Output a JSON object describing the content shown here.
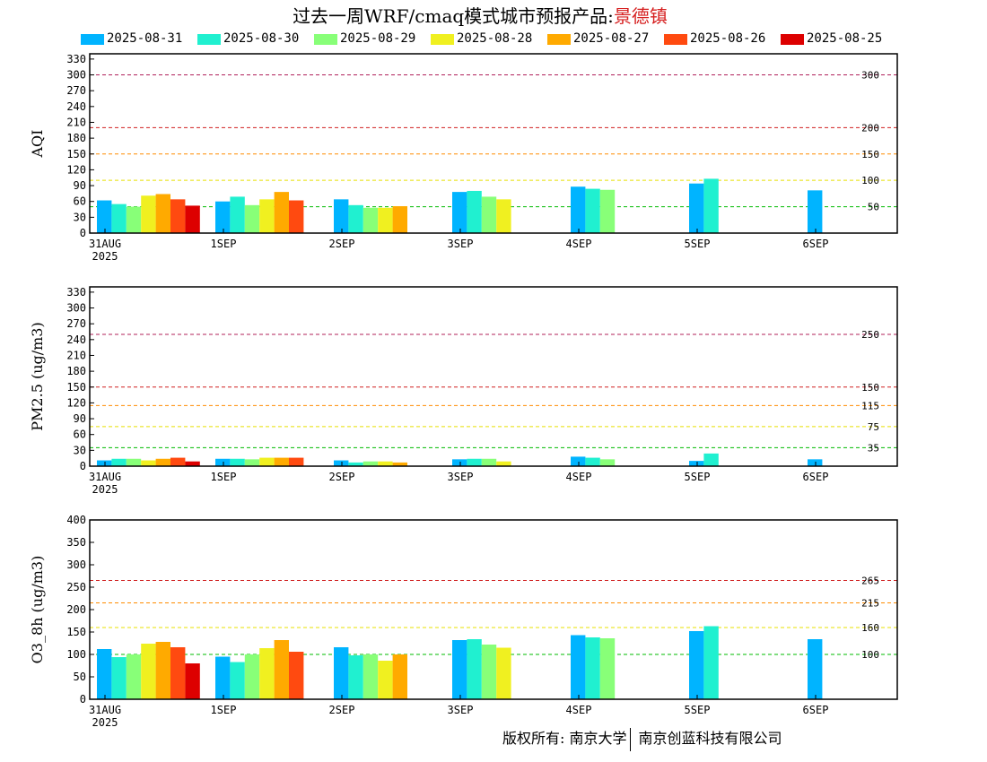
{
  "title": {
    "main": "过去一周WRF/cmaq模式城市预报产品:",
    "city": "景德镇",
    "city_color": "#d62020"
  },
  "legend": [
    {
      "label": "2025-08-31",
      "color": "#00b4ff"
    },
    {
      "label": "2025-08-30",
      "color": "#20f0d0"
    },
    {
      "label": "2025-08-29",
      "color": "#88ff78"
    },
    {
      "label": "2025-08-28",
      "color": "#f0f020"
    },
    {
      "label": "2025-08-27",
      "color": "#ffaa00"
    },
    {
      "label": "2025-08-26",
      "color": "#ff4a10"
    },
    {
      "label": "2025-08-25",
      "color": "#dd0000"
    }
  ],
  "copyright": {
    "left": "版权所有: 南京大学",
    "right": "南京创蓝科技有限公司"
  },
  "chart_data": [
    {
      "type": "bar",
      "ylabel": "AQI",
      "ylim": [
        0,
        340
      ],
      "yticks": [
        0,
        30,
        60,
        90,
        120,
        150,
        180,
        210,
        240,
        270,
        300,
        330
      ],
      "x_labels": [
        "31AUG",
        "1SEP",
        "2SEP",
        "3SEP",
        "4SEP",
        "5SEP",
        "6SEP"
      ],
      "x_sublabel": "2025",
      "thresholds": [
        {
          "value": 300,
          "label": "300",
          "color": "#b0205a"
        },
        {
          "value": 200,
          "label": "200",
          "color": "#d02020"
        },
        {
          "value": 150,
          "label": "150",
          "color": "#ff8c00"
        },
        {
          "value": 100,
          "label": "100",
          "color": "#e8e000"
        },
        {
          "value": 50,
          "label": "50",
          "color": "#00bb00"
        }
      ],
      "series": [
        {
          "name": "2025-08-31",
          "values": [
            62,
            60,
            64,
            78,
            88,
            94,
            81
          ]
        },
        {
          "name": "2025-08-30",
          "values": [
            55,
            69,
            53,
            80,
            84,
            103,
            null
          ]
        },
        {
          "name": "2025-08-29",
          "values": [
            50,
            53,
            48,
            69,
            82,
            null,
            null
          ]
        },
        {
          "name": "2025-08-28",
          "values": [
            71,
            64,
            48,
            64,
            null,
            null,
            null
          ]
        },
        {
          "name": "2025-08-27",
          "values": [
            74,
            78,
            51,
            null,
            null,
            null,
            null
          ]
        },
        {
          "name": "2025-08-26",
          "values": [
            64,
            62,
            null,
            null,
            null,
            null,
            null
          ]
        },
        {
          "name": "2025-08-25",
          "values": [
            52,
            null,
            null,
            null,
            null,
            null,
            null
          ]
        }
      ]
    },
    {
      "type": "bar",
      "ylabel": "PM2.5 (ug/m3)",
      "ylim": [
        0,
        340
      ],
      "yticks": [
        0,
        30,
        60,
        90,
        120,
        150,
        180,
        210,
        240,
        270,
        300,
        330
      ],
      "x_labels": [
        "31AUG",
        "1SEP",
        "2SEP",
        "3SEP",
        "4SEP",
        "5SEP",
        "6SEP"
      ],
      "x_sublabel": "2025",
      "thresholds": [
        {
          "value": 250,
          "label": "250",
          "color": "#b0205a"
        },
        {
          "value": 150,
          "label": "150",
          "color": "#d02020"
        },
        {
          "value": 115,
          "label": "115",
          "color": "#ff8c00"
        },
        {
          "value": 75,
          "label": "75",
          "color": "#e8e000"
        },
        {
          "value": 35,
          "label": "35",
          "color": "#00bb00"
        }
      ],
      "series": [
        {
          "name": "2025-08-31",
          "values": [
            11,
            14,
            11,
            13,
            18,
            10,
            13
          ]
        },
        {
          "name": "2025-08-30",
          "values": [
            14,
            14,
            7,
            14,
            16,
            24,
            null
          ]
        },
        {
          "name": "2025-08-29",
          "values": [
            14,
            13,
            9,
            14,
            13,
            null,
            null
          ]
        },
        {
          "name": "2025-08-28",
          "values": [
            11,
            16,
            9,
            9,
            null,
            null,
            null
          ]
        },
        {
          "name": "2025-08-27",
          "values": [
            14,
            16,
            7,
            null,
            null,
            null,
            null
          ]
        },
        {
          "name": "2025-08-26",
          "values": [
            16,
            16,
            null,
            null,
            null,
            null,
            null
          ]
        },
        {
          "name": "2025-08-25",
          "values": [
            9,
            null,
            null,
            null,
            null,
            null,
            null
          ]
        }
      ]
    },
    {
      "type": "bar",
      "ylabel": "O3_8h (ug/m3)",
      "ylim": [
        0,
        400
      ],
      "yticks": [
        0,
        50,
        100,
        150,
        200,
        250,
        300,
        350,
        400
      ],
      "x_labels": [
        "31AUG",
        "1SEP",
        "2SEP",
        "3SEP",
        "4SEP",
        "5SEP",
        "6SEP"
      ],
      "x_sublabel": "2025",
      "thresholds": [
        {
          "value": 265,
          "label": "265",
          "color": "#d02020"
        },
        {
          "value": 215,
          "label": "215",
          "color": "#ff8c00"
        },
        {
          "value": 160,
          "label": "160",
          "color": "#e8e000"
        },
        {
          "value": 100,
          "label": "100",
          "color": "#00bb00"
        }
      ],
      "series": [
        {
          "name": "2025-08-31",
          "values": [
            112,
            95,
            116,
            132,
            143,
            152,
            134
          ]
        },
        {
          "name": "2025-08-30",
          "values": [
            94,
            83,
            98,
            134,
            138,
            163,
            null
          ]
        },
        {
          "name": "2025-08-29",
          "values": [
            100,
            100,
            100,
            122,
            136,
            null,
            null
          ]
        },
        {
          "name": "2025-08-28",
          "values": [
            124,
            114,
            86,
            115,
            null,
            null,
            null
          ]
        },
        {
          "name": "2025-08-27",
          "values": [
            128,
            132,
            100,
            null,
            null,
            null,
            null
          ]
        },
        {
          "name": "2025-08-26",
          "values": [
            116,
            106,
            null,
            null,
            null,
            null,
            null
          ]
        },
        {
          "name": "2025-08-25",
          "values": [
            80,
            null,
            null,
            null,
            null,
            null,
            null
          ]
        }
      ]
    }
  ]
}
